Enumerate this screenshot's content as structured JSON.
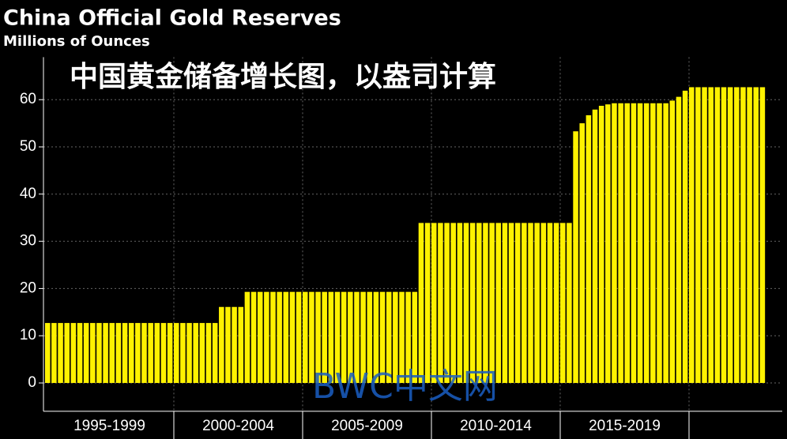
{
  "chart_data": {
    "type": "bar",
    "title": "China Official Gold Reserves",
    "subtitle": "Millions of Ounces",
    "annotation": "中国黄金储备增长图，以盎司计算",
    "watermark": "BWC中文网",
    "groups": [
      "1995-1999",
      "2000-2004",
      "2005-2009",
      "2010-2014",
      "2015-2019",
      null
    ],
    "bars_per_group": 20,
    "values": [
      12.7,
      12.7,
      12.7,
      12.7,
      12.7,
      12.7,
      12.7,
      12.7,
      12.7,
      12.7,
      12.7,
      12.7,
      12.7,
      12.7,
      12.7,
      12.7,
      12.7,
      12.7,
      12.7,
      12.7,
      12.7,
      12.7,
      12.7,
      12.7,
      12.7,
      12.7,
      12.7,
      16.1,
      16.1,
      16.1,
      16.1,
      19.29,
      19.29,
      19.29,
      19.29,
      19.29,
      19.29,
      19.29,
      19.29,
      19.29,
      19.29,
      19.29,
      19.29,
      19.29,
      19.29,
      19.29,
      19.29,
      19.29,
      19.29,
      19.29,
      19.29,
      19.29,
      19.29,
      19.29,
      19.29,
      19.29,
      19.29,
      19.29,
      33.89,
      33.89,
      33.89,
      33.89,
      33.89,
      33.89,
      33.89,
      33.89,
      33.89,
      33.89,
      33.89,
      33.89,
      33.89,
      33.89,
      33.89,
      33.89,
      33.89,
      33.89,
      33.89,
      33.89,
      33.89,
      33.89,
      33.89,
      33.89,
      53.3,
      55.0,
      56.7,
      57.9,
      58.7,
      59.0,
      59.24,
      59.24,
      59.24,
      59.24,
      59.24,
      59.24,
      59.24,
      59.24,
      59.24,
      59.8,
      60.6,
      61.9,
      62.64,
      62.64,
      62.64,
      62.64,
      62.64,
      62.64,
      62.64,
      62.64,
      62.64,
      62.64,
      62.64,
      62.64
    ],
    "color": "#fff200",
    "ylim": [
      -6,
      69
    ],
    "yticks": [
      0,
      10,
      20,
      30,
      40,
      50,
      60
    ],
    "grid": true
  }
}
